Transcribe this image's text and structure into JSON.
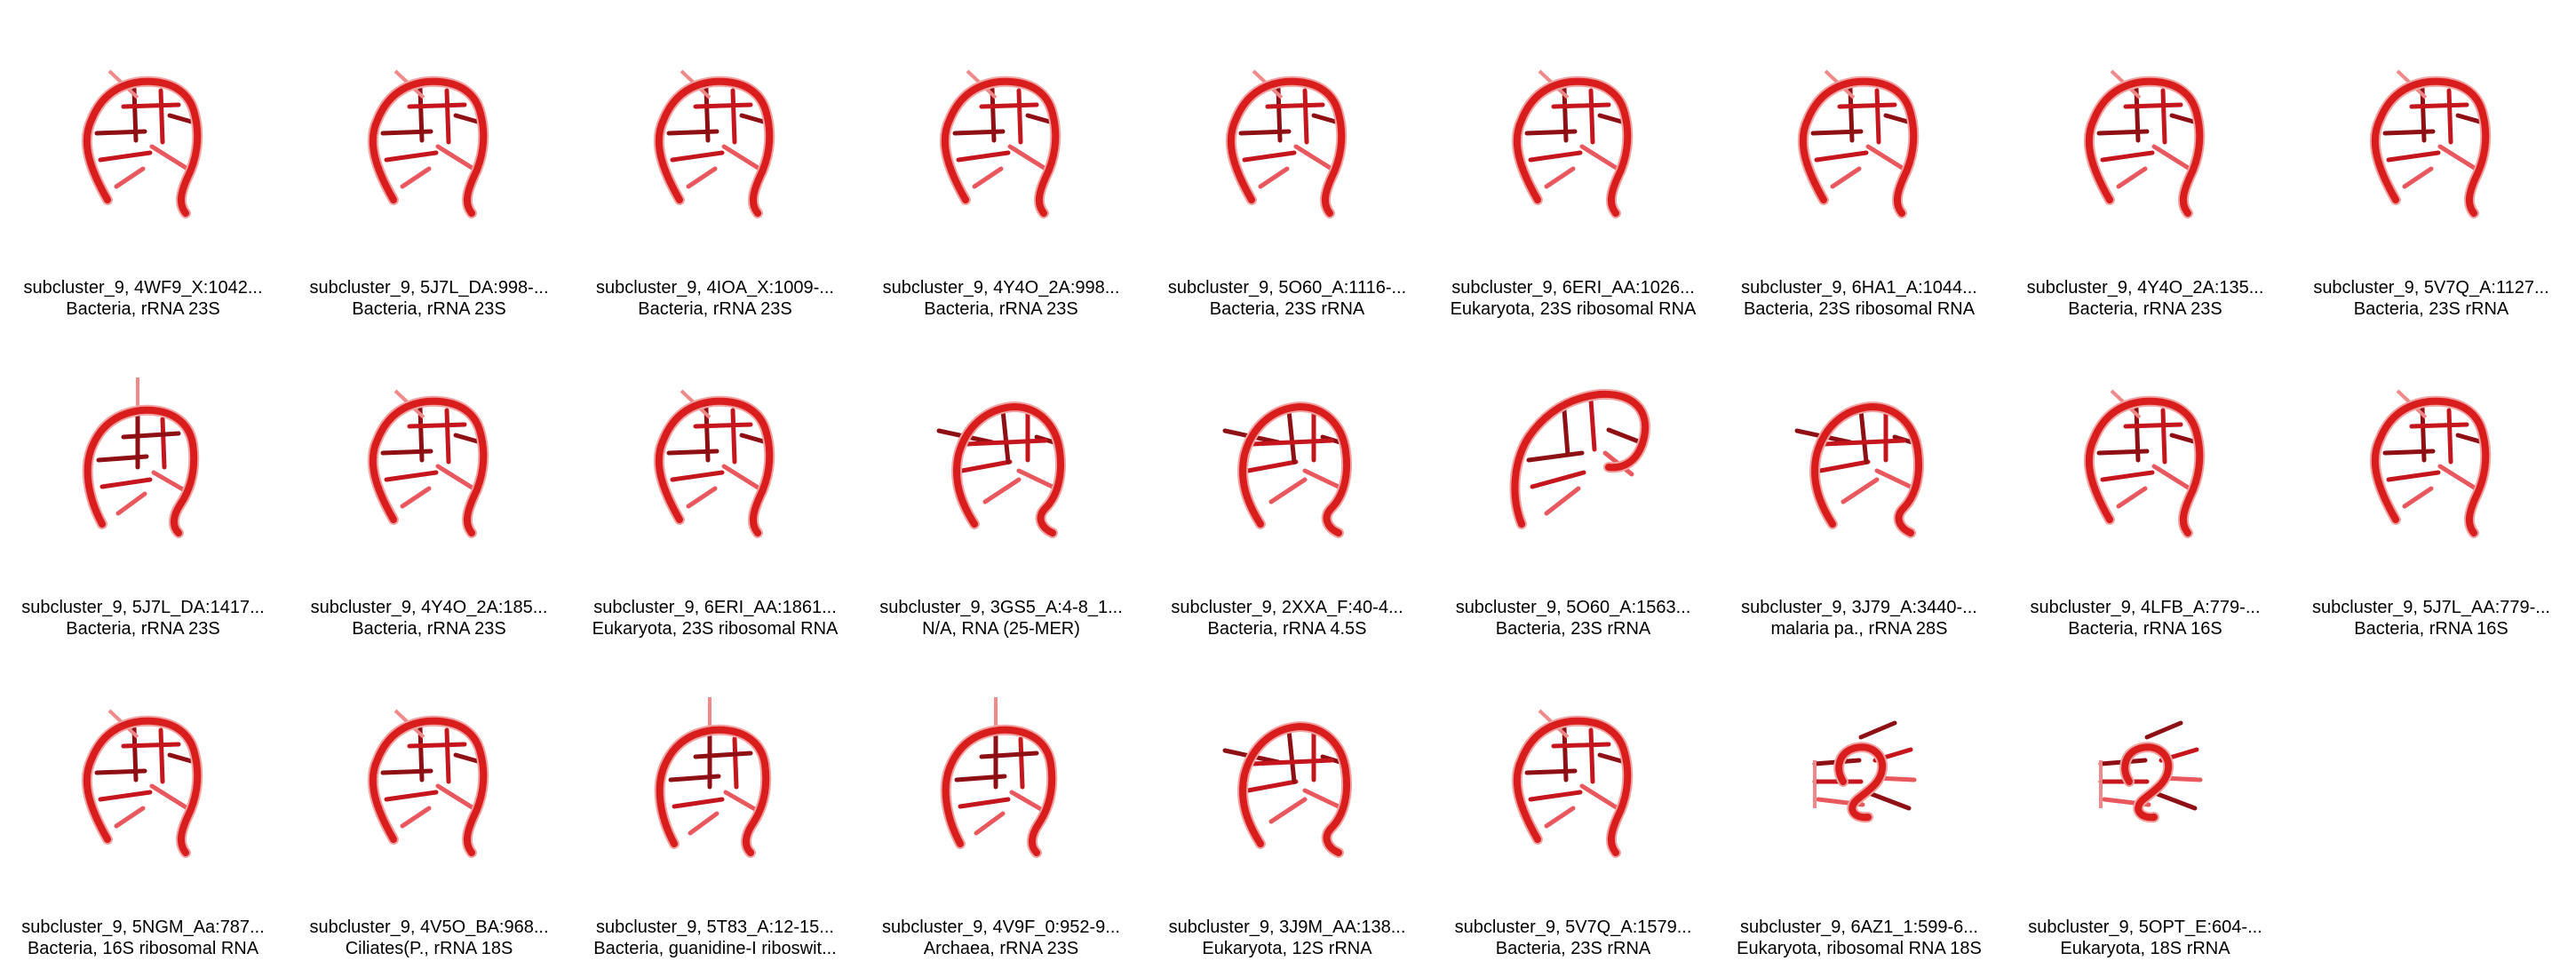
{
  "strand_color": "#d91c1c",
  "items": [
    {
      "title": "subcluster_9, 4WF9_X:1042...",
      "subtitle": "Bacteria, rRNA 23S",
      "shape": "loop"
    },
    {
      "title": "subcluster_9, 5J7L_DA:998-...",
      "subtitle": "Bacteria, rRNA 23S",
      "shape": "loop"
    },
    {
      "title": "subcluster_9, 4IOA_X:1009-...",
      "subtitle": "Bacteria, rRNA 23S",
      "shape": "loop"
    },
    {
      "title": "subcluster_9, 4Y4O_2A:998...",
      "subtitle": "Bacteria, rRNA 23S",
      "shape": "loop"
    },
    {
      "title": "subcluster_9, 5O60_A:1116-...",
      "subtitle": "Bacteria, 23S rRNA",
      "shape": "loop"
    },
    {
      "title": "subcluster_9, 6ERI_AA:1026...",
      "subtitle": "Eukaryota, 23S ribosomal RNA",
      "shape": "loop"
    },
    {
      "title": "subcluster_9, 6HA1_A:1044...",
      "subtitle": "Bacteria, 23S ribosomal RNA",
      "shape": "loop"
    },
    {
      "title": "subcluster_9, 4Y4O_2A:135...",
      "subtitle": "Bacteria, rRNA 23S",
      "shape": "loop"
    },
    {
      "title": "subcluster_9, 5V7Q_A:1127...",
      "subtitle": "Bacteria, 23S rRNA",
      "shape": "loop"
    },
    {
      "title": "subcluster_9, 5J7L_DA:1417...",
      "subtitle": "Bacteria, rRNA 23S",
      "shape": "tall"
    },
    {
      "title": "subcluster_9, 4Y4O_2A:185...",
      "subtitle": "Bacteria, rRNA 23S",
      "shape": "loop"
    },
    {
      "title": "subcluster_9, 6ERI_AA:1861...",
      "subtitle": "Eukaryota, 23S ribosomal RNA",
      "shape": "loop"
    },
    {
      "title": "subcluster_9, 3GS5_A:4-8_1...",
      "subtitle": "N/A, RNA (25-MER)",
      "shape": "wide"
    },
    {
      "title": "subcluster_9, 2XXA_F:40-4...",
      "subtitle": "Bacteria, rRNA 4.5S",
      "shape": "wide"
    },
    {
      "title": "subcluster_9, 5O60_A:1563...",
      "subtitle": "Bacteria, 23S rRNA",
      "shape": "arch"
    },
    {
      "title": "subcluster_9, 3J79_A:3440-...",
      "subtitle": "malaria pa., rRNA 28S",
      "shape": "wide"
    },
    {
      "title": "subcluster_9, 4LFB_A:779-...",
      "subtitle": "Bacteria, rRNA 16S",
      "shape": "loop"
    },
    {
      "title": "subcluster_9, 5J7L_AA:779-...",
      "subtitle": "Bacteria, rRNA 16S",
      "shape": "loop"
    },
    {
      "title": "subcluster_9, 5NGM_Aa:787...",
      "subtitle": "Bacteria, 16S ribosomal RNA",
      "shape": "loop"
    },
    {
      "title": "subcluster_9, 4V5O_BA:968...",
      "subtitle": "Ciliates(P., rRNA 18S",
      "shape": "loop"
    },
    {
      "title": "subcluster_9, 5T83_A:12-15...",
      "subtitle": "Bacteria, guanidine-I riboswit...",
      "shape": "tall"
    },
    {
      "title": "subcluster_9, 4V9F_0:952-9...",
      "subtitle": "Archaea, rRNA 23S",
      "shape": "tall"
    },
    {
      "title": "subcluster_9, 3J9M_AA:138...",
      "subtitle": "Eukaryota, 12S rRNA",
      "shape": "wide"
    },
    {
      "title": "subcluster_9, 5V7Q_A:1579...",
      "subtitle": "Bacteria, 23S rRNA",
      "shape": "loop"
    },
    {
      "title": "subcluster_9, 6AZ1_1:599-6...",
      "subtitle": "Eukaryota, ribosomal RNA 18S",
      "shape": "small"
    },
    {
      "title": "subcluster_9, 5OPT_E:604-...",
      "subtitle": "Eukaryota, 18S rRNA",
      "shape": "small"
    }
  ]
}
